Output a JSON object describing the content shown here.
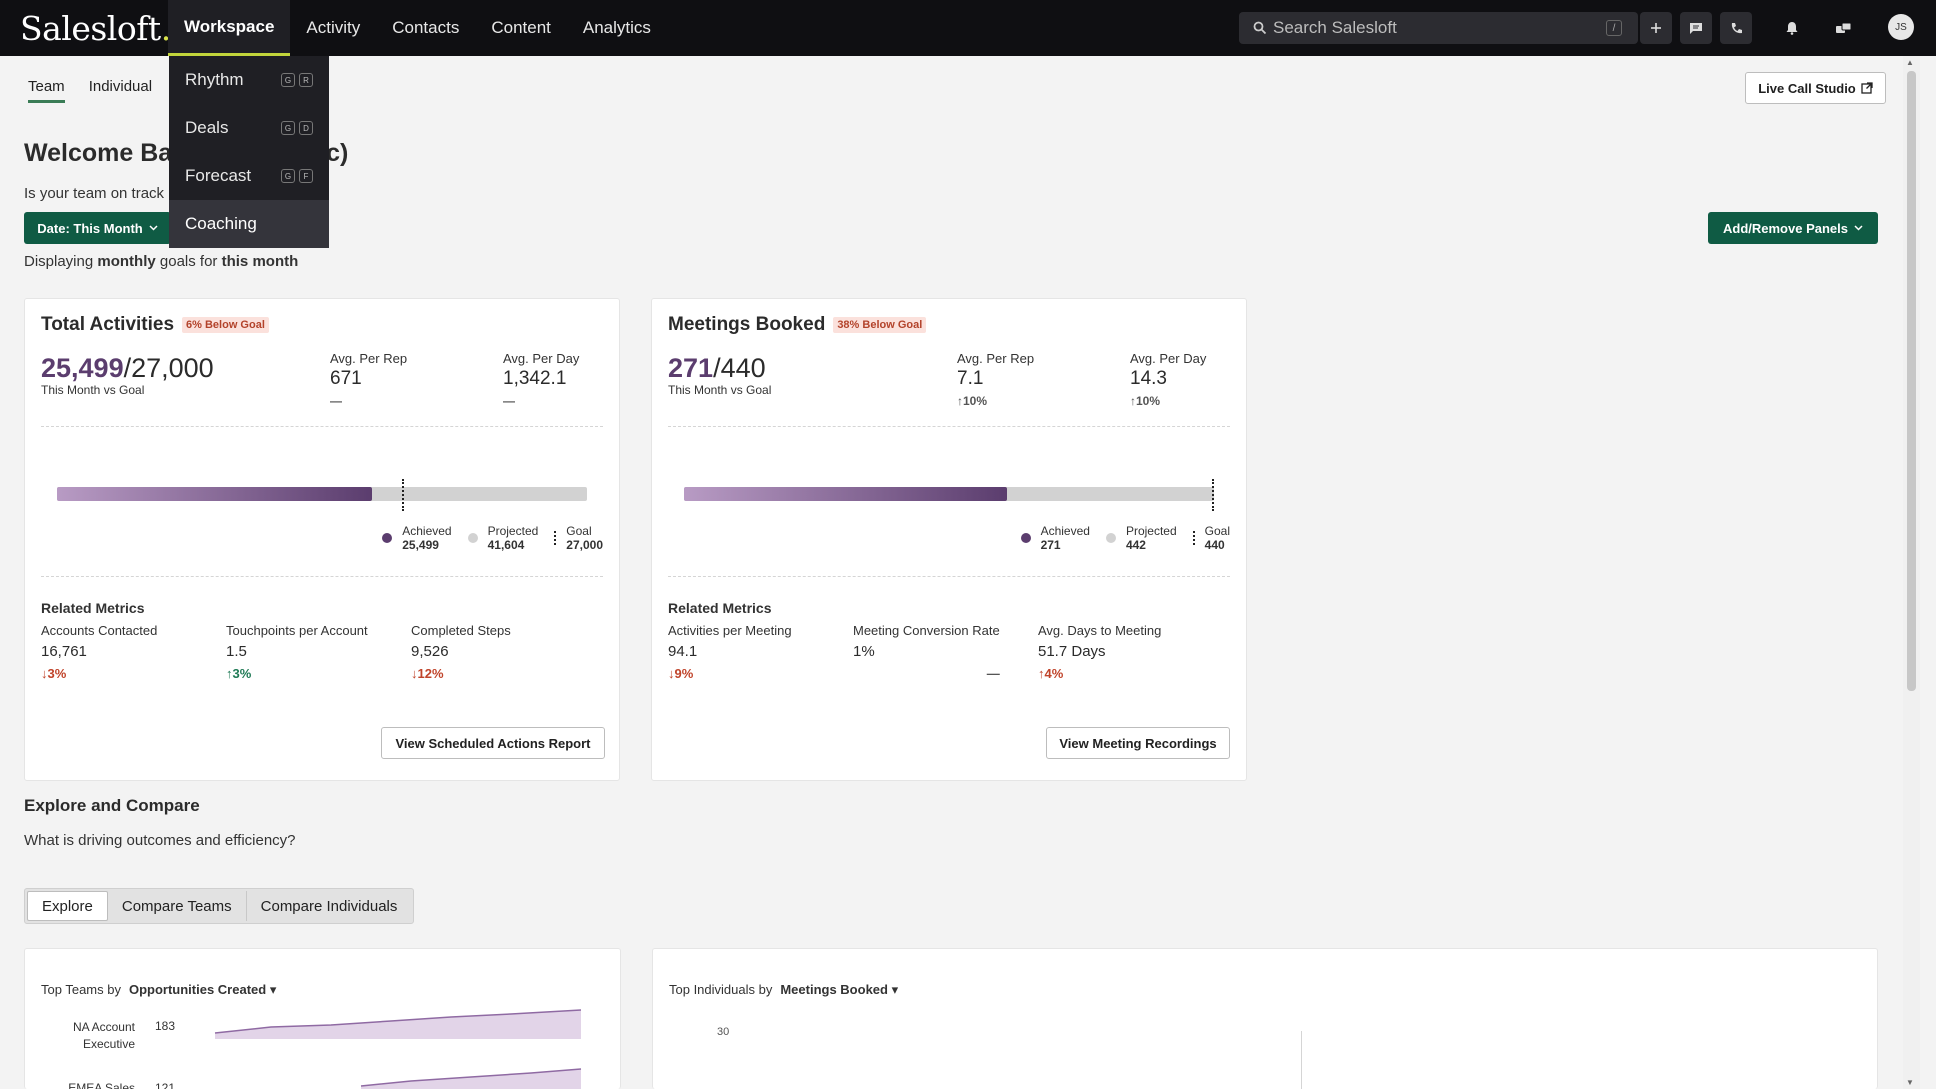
{
  "app": {
    "logo": "Salesloft",
    "logo_dot": "."
  },
  "nav": {
    "items": [
      "Workspace",
      "Activity",
      "Contacts",
      "Content",
      "Analytics"
    ],
    "active": "Workspace"
  },
  "search": {
    "placeholder": "Search Salesloft",
    "shortcut": "/"
  },
  "user": {
    "initials": "JS"
  },
  "dropdown": {
    "items": [
      {
        "label": "Rhythm",
        "keys": [
          "G",
          "R"
        ]
      },
      {
        "label": "Deals",
        "keys": [
          "G",
          "D"
        ]
      },
      {
        "label": "Forecast",
        "keys": [
          "G",
          "F"
        ]
      },
      {
        "label": "Coaching",
        "keys": []
      }
    ]
  },
  "subtabs": {
    "team": "Team",
    "individual": "Individual"
  },
  "live_call": "Live Call Studio",
  "welcome": {
    "title_visible_left": "Welcome Bac",
    "title_visible_right": "c)",
    "subhead": "Is your team on track"
  },
  "date_btn": "Date: This Month",
  "displaying": {
    "prefix": "Displaying",
    "bold1": "monthly",
    "mid": "goals for",
    "bold2": "this month"
  },
  "add_remove": "Add/Remove Panels",
  "card1": {
    "title": "Total Activities",
    "badge": "6% Below Goal",
    "achieved": "25,499",
    "goal": "/27,000",
    "caption": "This Month vs Goal",
    "avg_rep_label": "Avg. Per Rep",
    "avg_rep": "671",
    "avg_rep_chg": "—",
    "avg_day_label": "Avg. Per Day",
    "avg_day": "1,342.1",
    "avg_day_chg": "—",
    "progress_achieved": 0.594,
    "progress_goal": 0.65,
    "leg_achieved": "Achieved",
    "leg_achieved_v": "25,499",
    "leg_projected": "Projected",
    "leg_projected_v": "41,604",
    "leg_goal": "Goal",
    "leg_goal_v": "27,000",
    "related": "Related Metrics",
    "m1_label": "Accounts Contacted",
    "m1_val": "16,761",
    "m1_chg": "3%",
    "m2_label": "Touchpoints per Account",
    "m2_val": "1.5",
    "m2_chg": "3%",
    "m3_label": "Completed Steps",
    "m3_val": "9,526",
    "m3_chg": "12%",
    "button": "View Scheduled Actions Report"
  },
  "card2": {
    "title": "Meetings Booked",
    "badge": "38% Below Goal",
    "achieved": "271",
    "goal": "/440",
    "caption": "This Month vs Goal",
    "avg_rep_label": "Avg. Per Rep",
    "avg_rep": "7.1",
    "avg_rep_chg": "10%",
    "avg_day_label": "Avg. Per Day",
    "avg_day": "14.3",
    "avg_day_chg": "10%",
    "progress_achieved": 0.609,
    "progress_goal": 1.0,
    "leg_achieved": "Achieved",
    "leg_achieved_v": "271",
    "leg_projected": "Projected",
    "leg_projected_v": "442",
    "leg_goal": "Goal",
    "leg_goal_v": "440",
    "related": "Related Metrics",
    "m1_label": "Activities per Meeting",
    "m1_val": "94.1",
    "m1_chg": "9%",
    "m2_label": "Meeting Conversion Rate",
    "m2_val": "1%",
    "m2_chg": "—",
    "m3_label": "Avg. Days to Meeting",
    "m3_val": "51.7 Days",
    "m3_chg": "4%",
    "button": "View Meeting Recordings"
  },
  "explore": {
    "title": "Explore and Compare",
    "sub": "What is driving outcomes and efficiency?",
    "tabs": [
      "Explore",
      "Compare Teams",
      "Compare Individuals"
    ]
  },
  "teams_panel": {
    "prefix": "Top Teams by",
    "metric": "Opportunities Created",
    "rows": [
      {
        "name1": "NA Account",
        "name2": "Executive",
        "value": "183"
      },
      {
        "name1": "EMEA Sales",
        "value": "121"
      }
    ]
  },
  "individuals_panel": {
    "prefix": "Top Individuals by",
    "metric": "Meetings Booked",
    "y_tick": "30"
  },
  "colors": {
    "brand_green": "#0f5b44",
    "achieved_purple": "#5b3d6e",
    "nav_bg": "#0f0f12",
    "accent_yellow": "#c2d53b"
  }
}
